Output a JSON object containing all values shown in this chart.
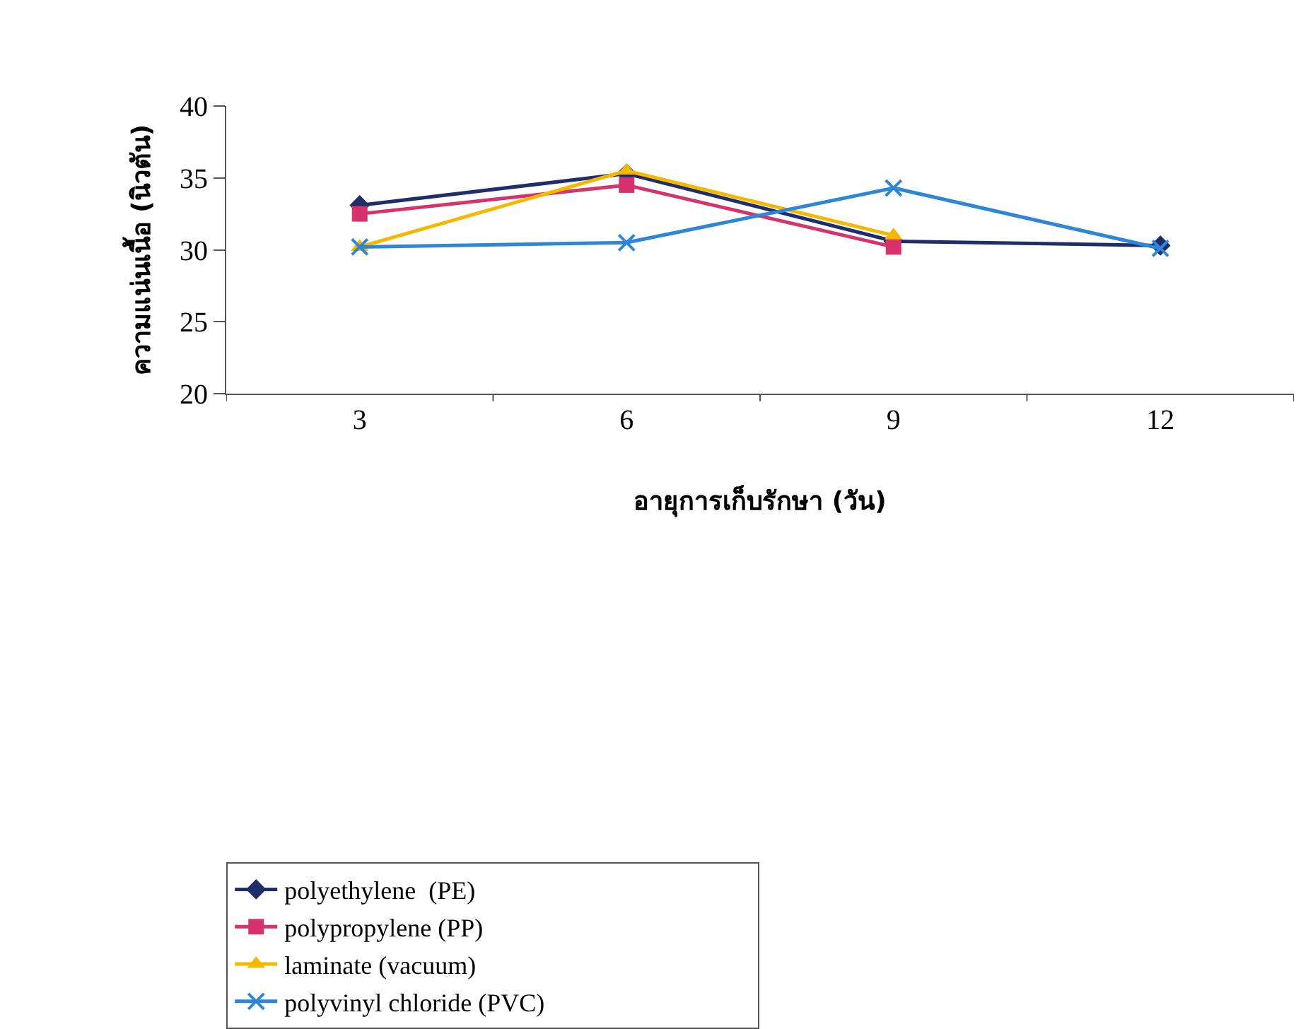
{
  "chart_data": {
    "type": "line",
    "xlabel": "อายุการเก็บรักษา (วัน)",
    "ylabel": "ความแน่นเนื้อ (นิวตัน)",
    "categories": [
      "3",
      "6",
      "9",
      "12"
    ],
    "ylim": [
      20,
      40
    ],
    "yticks": [
      20,
      25,
      30,
      35,
      40
    ],
    "legend": "bottom",
    "series": [
      {
        "name": "polyethylene  (PE)",
        "color": "#1f2d6b",
        "marker": "diamond",
        "values": [
          33.1,
          35.3,
          30.6,
          30.3
        ]
      },
      {
        "name": "polypropylene (PP)",
        "color": "#d6336c",
        "marker": "square",
        "values": [
          32.5,
          34.5,
          30.2,
          null
        ]
      },
      {
        "name": "laminate (vacuum)",
        "color": "#f5b800",
        "marker": "triangle",
        "values": [
          30.2,
          35.5,
          31.0,
          null
        ]
      },
      {
        "name": "polyvinyl chloride (PVC)",
        "color": "#2f86d6",
        "marker": "cross",
        "values": [
          30.2,
          30.5,
          34.3,
          30.1
        ]
      }
    ]
  }
}
